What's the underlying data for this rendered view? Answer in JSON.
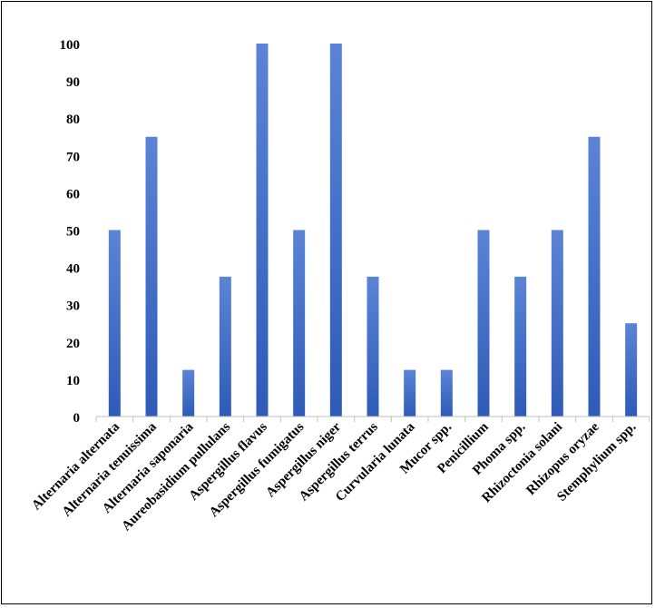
{
  "chart_data": {
    "type": "bar",
    "title": "",
    "xlabel": "",
    "ylabel": "",
    "ylim": [
      0,
      100
    ],
    "yticks": [
      0,
      10,
      20,
      30,
      40,
      50,
      60,
      70,
      80,
      90,
      100
    ],
    "grid": false,
    "legend": "none",
    "bar_color_top": "#5b84d6",
    "bar_color_bottom": "#2e5bb8",
    "categories": [
      "Alternaria alternata",
      "Alternaria tenuissima",
      "Alternaria saponaria",
      "Aureobasidium pullulans",
      "Aspergillus flavus",
      "Aspergillus fumigatus",
      "Aspergillus niger",
      "Aspergillus terrus",
      "Curvularia lunata",
      "Mucor spp.",
      "Penicillium",
      "Phoma spp.",
      "Rhizoctonia solani",
      "Rhizopus oryzae",
      "Stemphylium spp."
    ],
    "values": [
      50,
      75,
      12.5,
      37.5,
      100,
      50,
      100,
      37.5,
      12.5,
      12.5,
      50,
      37.5,
      50,
      75,
      25
    ]
  }
}
